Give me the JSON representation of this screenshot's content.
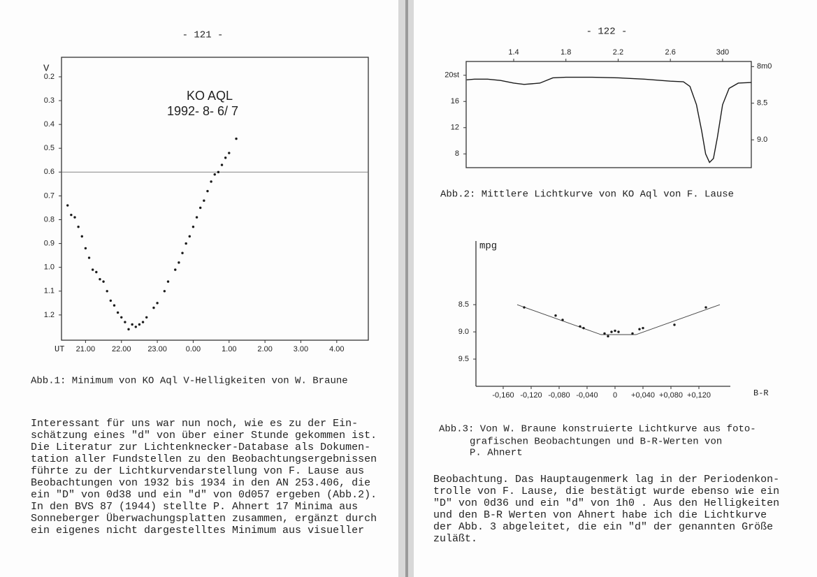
{
  "chart_data": [
    {
      "type": "scatter",
      "title": "KO AQL",
      "subtitle": "1992- 8- 6/ 7",
      "x_label": "UT",
      "y_label": "V",
      "x": [
        20.5,
        20.6,
        20.7,
        20.8,
        20.9,
        21.0,
        21.1,
        21.2,
        21.3,
        21.4,
        21.5,
        21.6,
        21.7,
        21.8,
        21.9,
        22.0,
        22.1,
        22.2,
        22.3,
        22.4,
        22.5,
        22.6,
        22.7,
        22.9,
        23.0,
        23.2,
        23.3,
        23.5,
        23.6,
        23.7,
        23.8,
        23.9,
        24.0,
        24.1,
        24.2,
        24.3,
        24.4,
        24.5,
        24.6,
        24.7,
        24.8,
        24.9,
        25.0,
        25.2
      ],
      "values": [
        0.74,
        0.78,
        0.79,
        0.83,
        0.87,
        0.92,
        0.96,
        1.01,
        1.02,
        1.05,
        1.06,
        1.1,
        1.14,
        1.16,
        1.19,
        1.21,
        1.23,
        1.26,
        1.24,
        1.25,
        1.24,
        1.23,
        1.21,
        1.17,
        1.15,
        1.1,
        1.06,
        1.01,
        0.98,
        0.94,
        0.9,
        0.87,
        0.83,
        0.79,
        0.75,
        0.72,
        0.68,
        0.64,
        0.61,
        0.6,
        0.57,
        0.54,
        0.52,
        0.46
      ],
      "color": "#1a1a1a",
      "xlim": [
        20.33,
        28.88
      ],
      "ylim": [
        1.306,
        0.118
      ],
      "xticks": [
        {
          "value": 21,
          "label": "21.00"
        },
        {
          "value": 22,
          "label": "22.00"
        },
        {
          "value": 23,
          "label": "23.00"
        },
        {
          "value": 24,
          "label": "0.00"
        },
        {
          "value": 25,
          "label": "1.00"
        },
        {
          "value": 26,
          "label": "2.00"
        },
        {
          "value": 27,
          "label": "3.00"
        },
        {
          "value": 28,
          "label": "4.00"
        }
      ],
      "yticks": [
        0.2,
        0.3,
        0.4,
        0.5,
        0.6,
        0.7,
        0.8,
        0.9,
        {
          "value": 1,
          "label": "1.0"
        },
        1.1,
        1.2
      ],
      "reference_line": 0.6,
      "frame": true,
      "x_axis_position": "bottom"
    },
    {
      "type": "line",
      "x": [
        1.04,
        1.1,
        1.2,
        1.3,
        1.4,
        1.48,
        1.6,
        1.7,
        1.8,
        2.0,
        2.2,
        2.4,
        2.6,
        2.7,
        2.75,
        2.8,
        2.84,
        2.87,
        2.9,
        2.93,
        2.96,
        3.0,
        3.05,
        3.12,
        3.22
      ],
      "values": [
        19.3,
        19.4,
        19.4,
        19.2,
        18.8,
        18.6,
        18.8,
        19.6,
        19.7,
        19.7,
        19.6,
        19.4,
        19.1,
        19.0,
        18.3,
        15.5,
        11.5,
        8.0,
        6.7,
        7.3,
        10.5,
        15.5,
        18.0,
        18.8,
        18.9
      ],
      "color": "#1a1a1a",
      "xlim": [
        1.036,
        3.22
      ],
      "ylim": [
        5.9,
        22.1
      ],
      "y2lim": [
        9.38,
        7.93
      ],
      "xticks": [
        1.4,
        1.8,
        2.2,
        2.6,
        {
          "value": 3,
          "label": "3d0"
        }
      ],
      "yticks": [
        {
          "value": 20,
          "label": "20st"
        },
        16,
        12,
        8
      ],
      "y2ticks": [
        {
          "value": 8,
          "label": "8m0"
        },
        8.5,
        {
          "value": 9,
          "label": "9.0"
        }
      ],
      "frame": true,
      "x_axis_position": "top"
    },
    {
      "type": "scatter",
      "x_label": "B-R",
      "y_label": "mpg",
      "x": [
        -0.13,
        -0.085,
        -0.075,
        -0.05,
        -0.045,
        -0.015,
        -0.01,
        -0.005,
        0.0,
        0.005,
        0.025,
        0.035,
        0.04,
        0.085,
        0.13
      ],
      "values": [
        8.55,
        8.7,
        8.78,
        8.9,
        8.93,
        9.03,
        9.08,
        9.0,
        8.98,
        9.0,
        9.03,
        8.95,
        8.93,
        8.87,
        8.55
      ],
      "fit": {
        "x": [
          -0.14,
          -0.02,
          0.03,
          0.15
        ],
        "values": [
          8.5,
          9.05,
          9.05,
          8.5
        ]
      },
      "color": "#1a1a1a",
      "xlim": [
        -0.199,
        0.165
      ],
      "ylim": [
        10.0,
        7.33
      ],
      "xticks": [
        {
          "value": -0.16,
          "label": "-0,160"
        },
        {
          "value": -0.12,
          "label": "-0,120"
        },
        {
          "value": -0.08,
          "label": "-0,080"
        },
        {
          "value": -0.04,
          "label": "-0,040"
        },
        0,
        {
          "value": 0.04,
          "label": "+0,040"
        },
        {
          "value": 0.08,
          "label": "+0,080"
        },
        {
          "value": 0.12,
          "label": "+0,120"
        }
      ],
      "yticks": [
        8.5,
        {
          "value": 9,
          "label": "9.0"
        },
        9.5
      ],
      "frame": false,
      "x_axis_position": "bottom"
    }
  ],
  "pages": [
    {
      "page_number": "- 121 -",
      "captions": [
        "Abb.1: Minimum von KO Aql V-Helligkeiten von W. Braune"
      ],
      "text_lines": [
        "Interessant für uns war nun noch, wie es zu der Ein-",
        "schätzung eines \"d\" von über einer Stunde gekommen ist.",
        "Die Literatur zur Lichtenknecker-Database als Dokumen-",
        "tation aller Fundstellen zu den Beobachtungsergebnissen",
        "führte zu der Lichtkurvendarstellung von F. Lause aus",
        "Beobachtungen von 1932 bis 1934 in den AN 253.406, die",
        "ein \"D\" von 0d38 und ein \"d\" von 0d057 ergeben (Abb.2).",
        "In den BVS 87 (1944) stellte P. Ahnert 17 Minima aus",
        "Sonneberger Überwachungsplatten zusammen, ergänzt durch",
        "ein eigenes nicht dargestelltes Minimum aus visueller"
      ]
    },
    {
      "page_number": "- 122 -",
      "captions": [
        "Abb.2: Mittlere Lichtkurve von KO Aql von F. Lause",
        "Abb.3: Von W. Braune konstruierte Lichtkurve aus foto-",
        "grafischen Beobachtungen und B-R-Werten von",
        "P. Ahnert"
      ],
      "text_lines": [
        "Beobachtung. Das Hauptaugenmerk lag in der Periodenkon-",
        "trolle von F. Lause, die bestätigt wurde ebenso wie ein",
        "\"D\" von 0d36 und ein \"d\" von 1h0 . Aus den Helligkeiten",
        "und den B-R Werten von Ahnert habe ich die Lichtkurve",
        "der Abb. 3 abgeleitet, die ein \"d\" der genannten Größe",
        "zuläßt."
      ]
    }
  ]
}
